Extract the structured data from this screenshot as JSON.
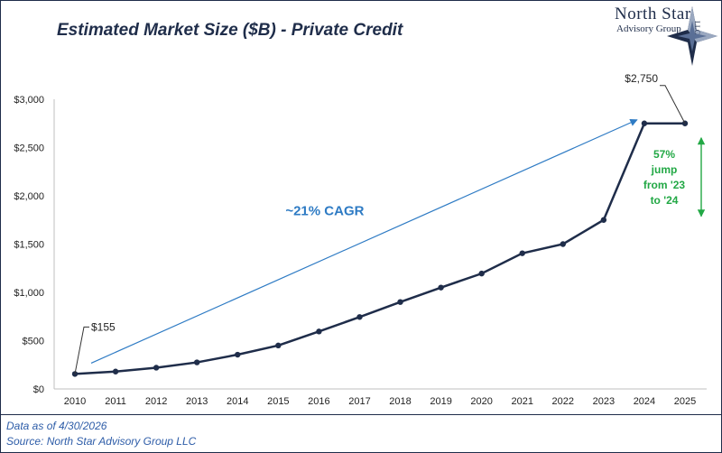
{
  "header": {
    "title": "Estimated Market Size ($B) - Private Credit"
  },
  "logo": {
    "line1": "North Star",
    "line2": "Advisory Group",
    "llc": "LLC",
    "star_icon": "compass-star-icon"
  },
  "chart_data": {
    "type": "line",
    "title": "Estimated Market Size ($B) - Private Credit",
    "xlabel": "",
    "ylabel": "",
    "x": [
      2010,
      2011,
      2012,
      2013,
      2014,
      2015,
      2016,
      2017,
      2018,
      2019,
      2020,
      2021,
      2022,
      2023,
      2024,
      2025
    ],
    "values": [
      155,
      180,
      220,
      275,
      355,
      450,
      595,
      745,
      900,
      1050,
      1195,
      1405,
      1500,
      1750,
      2750,
      2750
    ],
    "ylim": [
      0,
      3000
    ],
    "yticks": [
      0,
      500,
      1000,
      1500,
      2000,
      2500,
      3000
    ],
    "ytick_labels": [
      "$0",
      "$500",
      "$1,000",
      "$1,500",
      "$2,000",
      "$2,500",
      "$3,000"
    ],
    "grid": false,
    "colors": {
      "line": "#1f2d4a",
      "trend": "#2e7bc4",
      "jump": "#22a845"
    },
    "annotations": {
      "start_label": "$155",
      "end_label": "$2,750",
      "cagr": "~21% CAGR",
      "jump_lines": [
        "57%",
        "jump",
        "from '23",
        "to '24"
      ]
    }
  },
  "footer": {
    "line1": "Data as of 4/30/2026",
    "line2": "Source: North Star Advisory Group LLC"
  }
}
